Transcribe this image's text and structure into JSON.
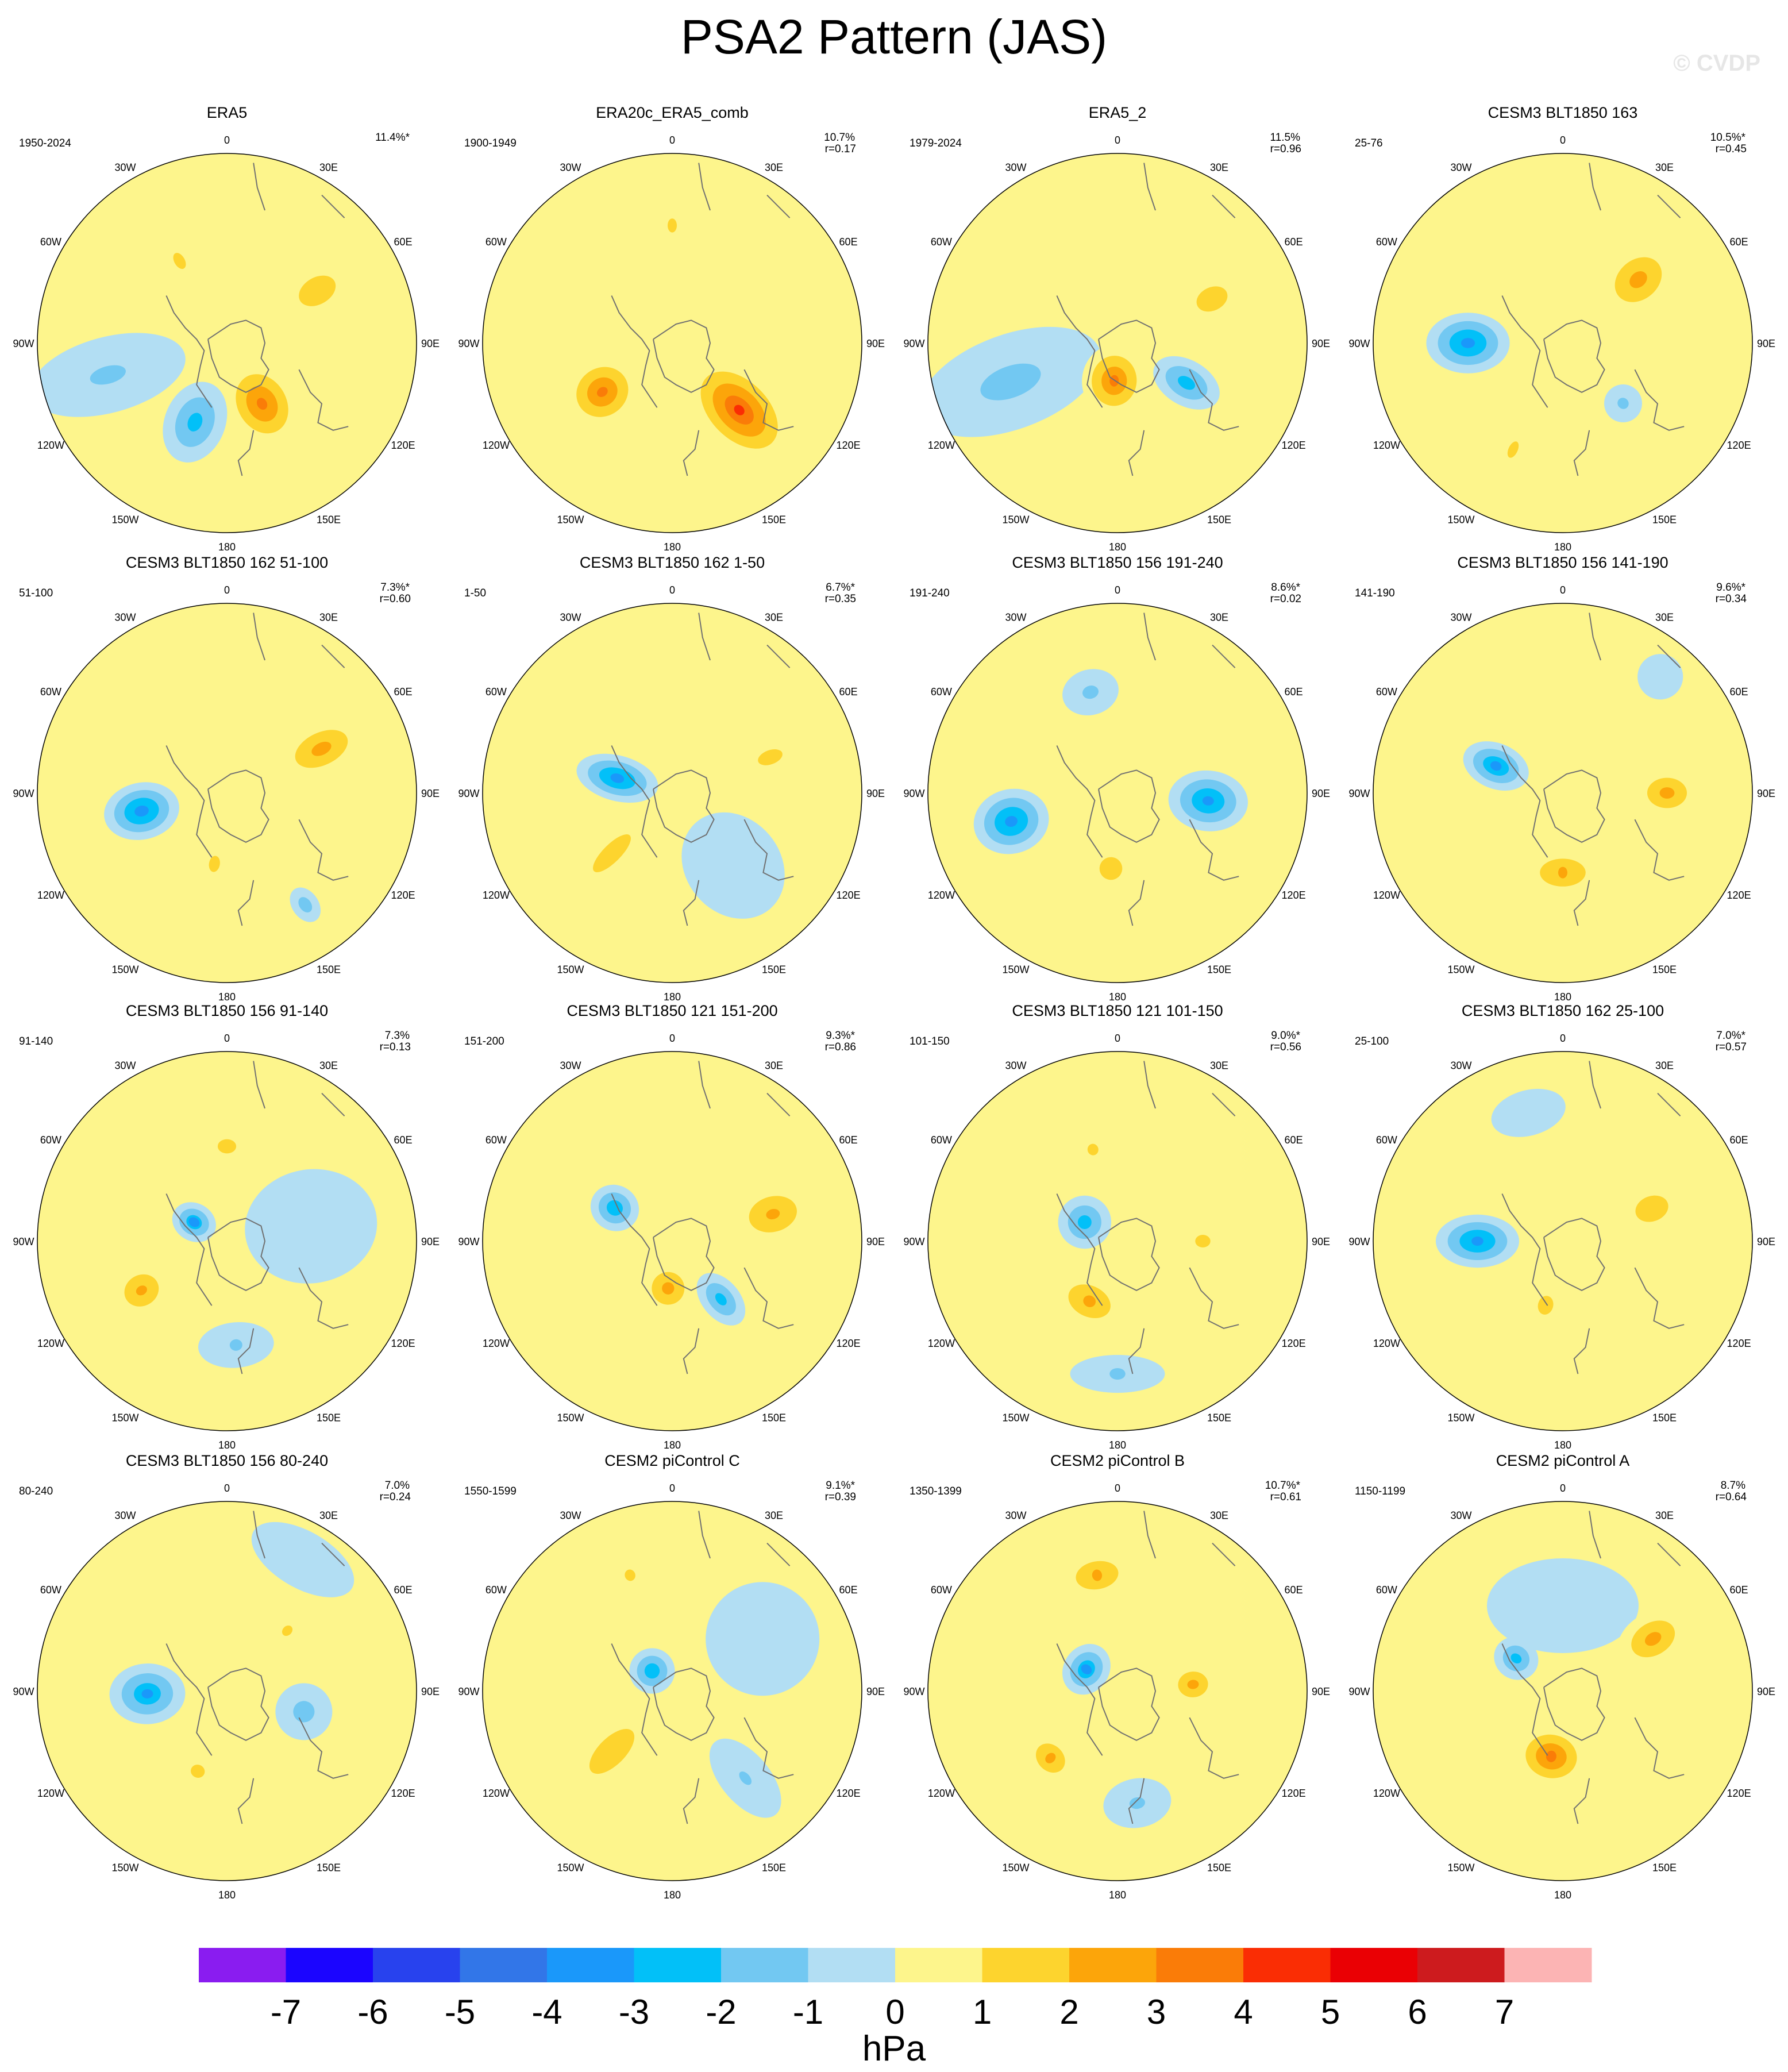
{
  "title": "PSA2 Pattern (JAS)",
  "watermark": "© CVDP",
  "units": "hPa",
  "chart_data": {
    "type": "heatmap",
    "projection": "south-polar-stereographic",
    "longitude_labels": [
      "0",
      "30E",
      "60E",
      "90E",
      "120E",
      "150E",
      "180",
      "150W",
      "120W",
      "90W",
      "60W",
      "30W"
    ],
    "colorbar": {
      "labels": [
        "-7",
        "-6",
        "-5",
        "-4",
        "-3",
        "-2",
        "-1",
        "0",
        "1",
        "2",
        "3",
        "4",
        "5",
        "6",
        "7"
      ],
      "colors": [
        "#8a1cf0",
        "#1b05ff",
        "#2842ee",
        "#3276e8",
        "#1a98fa",
        "#02c0f8",
        "#72c8f2",
        "#b2def3",
        "#fdf58c",
        "#fdd42e",
        "#fca50a",
        "#fa7c08",
        "#fa2d04",
        "#ea0004",
        "#cd1b1e",
        "#fcb4b4"
      ]
    },
    "panels": [
      {
        "title": "ERA5",
        "years": "1950-2024",
        "pct": "11.4%*",
        "r": "",
        "blobs": [
          {
            "lon": 150,
            "d": 0.37,
            "v": 3.5,
            "rx": 0.18,
            "ry": 0.23
          },
          {
            "lon": 202,
            "d": 0.45,
            "v": -2.6,
            "rx": 0.16,
            "ry": 0.22
          },
          {
            "lon": 255,
            "d": 0.65,
            "v": -1.3,
            "rx": 0.2,
            "ry": 0.42
          },
          {
            "lon": 60,
            "d": 0.55,
            "v": 1.9,
            "rx": 0.15,
            "ry": 0.22
          },
          {
            "lon": 330,
            "d": 0.5,
            "v": 1.3,
            "rx": 0.12,
            "ry": 0.2
          }
        ]
      },
      {
        "title": "ERA20c_ERA5_comb",
        "years": "1900-1949",
        "pct": "10.7%",
        "r": "r=0.17",
        "blobs": [
          {
            "lon": 135,
            "d": 0.5,
            "v": 4.2,
            "rx": 0.2,
            "ry": 0.32
          },
          {
            "lon": 235,
            "d": 0.45,
            "v": 3.4,
            "rx": 0.18,
            "ry": 0.2
          },
          {
            "lon": 0,
            "d": 0.62,
            "v": 1.3,
            "rx": 0.1,
            "ry": 0.16
          },
          {
            "lon": 180,
            "d": 0.55,
            "v": 0.6,
            "rx": 0.4,
            "ry": 0.45
          }
        ]
      },
      {
        "title": "ERA5_2",
        "years": "1979-2024",
        "pct": "11.5%",
        "r": "r=0.96",
        "blobs": [
          {
            "lon": 185,
            "d": 0.2,
            "v": 3.3,
            "rx": 0.17,
            "ry": 0.19
          },
          {
            "lon": 120,
            "d": 0.42,
            "v": -2.7,
            "rx": 0.12,
            "ry": 0.19
          },
          {
            "lon": 250,
            "d": 0.6,
            "v": -1.5,
            "rx": 0.25,
            "ry": 0.5
          },
          {
            "lon": 65,
            "d": 0.55,
            "v": 1.9,
            "rx": 0.13,
            "ry": 0.18
          }
        ]
      },
      {
        "title": "CESM3 BLT1850 163",
        "years": "25-76",
        "pct": "10.5%*",
        "r": "r=0.45",
        "blobs": [
          {
            "lon": 270,
            "d": 0.5,
            "v": -3.6,
            "rx": 0.16,
            "ry": 0.22
          },
          {
            "lon": 50,
            "d": 0.52,
            "v": 2.6,
            "rx": 0.17,
            "ry": 0.22
          },
          {
            "lon": 135,
            "d": 0.45,
            "v": -1.4,
            "rx": 0.1,
            "ry": 0.1
          },
          {
            "lon": 205,
            "d": 0.62,
            "v": 1.3,
            "rx": 0.1,
            "ry": 0.2
          },
          {
            "lon": 10,
            "d": 0.3,
            "v": 0.8,
            "rx": 0.35,
            "ry": 0.25
          }
        ]
      },
      {
        "title": "CESM3 BLT1850 162 51-100",
        "years": "51-100",
        "pct": "7.3%*",
        "r": "r=0.60",
        "blobs": [
          {
            "lon": 258,
            "d": 0.46,
            "v": -3.7,
            "rx": 0.15,
            "ry": 0.2
          },
          {
            "lon": 65,
            "d": 0.55,
            "v": 2.6,
            "rx": 0.14,
            "ry": 0.24
          },
          {
            "lon": 190,
            "d": 0.38,
            "v": 1.4,
            "rx": 0.1,
            "ry": 0.15
          },
          {
            "lon": 145,
            "d": 0.72,
            "v": -1.8,
            "rx": 0.07,
            "ry": 0.1
          }
        ]
      },
      {
        "title": "CESM3 BLT1850 162 1-50",
        "years": "1-50",
        "pct": "6.7%*",
        "r": "r=0.35",
        "blobs": [
          {
            "lon": 285,
            "d": 0.3,
            "v": -3.6,
            "rx": 0.12,
            "ry": 0.22
          },
          {
            "lon": 225,
            "d": 0.45,
            "v": 1.5,
            "rx": 0.14,
            "ry": 0.4
          },
          {
            "lon": 70,
            "d": 0.55,
            "v": 1.6,
            "rx": 0.1,
            "ry": 0.18
          },
          {
            "lon": 140,
            "d": 0.5,
            "v": -0.7,
            "rx": 0.25,
            "ry": 0.3
          }
        ]
      },
      {
        "title": "CESM3 BLT1850 156 191-240",
        "years": "191-240",
        "pct": "8.6%*",
        "r": "r=0.02",
        "blobs": [
          {
            "lon": 255,
            "d": 0.58,
            "v": -3.6,
            "rx": 0.17,
            "ry": 0.2
          },
          {
            "lon": 95,
            "d": 0.48,
            "v": -3.4,
            "rx": 0.16,
            "ry": 0.21
          },
          {
            "lon": 345,
            "d": 0.55,
            "v": -1.4,
            "rx": 0.15,
            "ry": 0.12
          },
          {
            "lon": 185,
            "d": 0.4,
            "v": 1.6,
            "rx": 0.16,
            "ry": 0.16
          }
        ]
      },
      {
        "title": "CESM3 BLT1850 156 141-190",
        "years": "141-190",
        "pct": "9.6%*",
        "r": "r=0.34",
        "blobs": [
          {
            "lon": 292,
            "d": 0.38,
            "v": -3.3,
            "rx": 0.12,
            "ry": 0.18
          },
          {
            "lon": 90,
            "d": 0.55,
            "v": 2.6,
            "rx": 0.13,
            "ry": 0.17
          },
          {
            "lon": 180,
            "d": 0.42,
            "v": 2.1,
            "rx": 0.23,
            "ry": 0.14
          },
          {
            "lon": 40,
            "d": 0.8,
            "v": -0.8,
            "rx": 0.12,
            "ry": 0.12
          }
        ]
      },
      {
        "title": "CESM3 BLT1850 156 91-140",
        "years": "91-140",
        "pct": "7.3%",
        "r": "r=0.13",
        "blobs": [
          {
            "lon": 300,
            "d": 0.2,
            "v": -3.1,
            "rx": 0.1,
            "ry": 0.12
          },
          {
            "lon": 240,
            "d": 0.52,
            "v": 2.4,
            "rx": 0.14,
            "ry": 0.16
          },
          {
            "lon": 0,
            "d": 0.5,
            "v": 1.6,
            "rx": 0.13,
            "ry": 0.1
          },
          {
            "lon": 175,
            "d": 0.55,
            "v": -1.2,
            "rx": 0.2,
            "ry": 0.12
          },
          {
            "lon": 80,
            "d": 0.45,
            "v": -0.7,
            "rx": 0.3,
            "ry": 0.35
          }
        ]
      },
      {
        "title": "CESM3 BLT1850 121 151-200",
        "years": "151-200",
        "pct": "9.3%*",
        "r": "r=0.86",
        "blobs": [
          {
            "lon": 185,
            "d": 0.25,
            "v": 2.6,
            "rx": 0.14,
            "ry": 0.14
          },
          {
            "lon": 75,
            "d": 0.55,
            "v": 2.4,
            "rx": 0.16,
            "ry": 0.22
          },
          {
            "lon": 300,
            "d": 0.35,
            "v": -3.0,
            "rx": 0.12,
            "ry": 0.13
          },
          {
            "lon": 140,
            "d": 0.4,
            "v": -2.6,
            "rx": 0.1,
            "ry": 0.16
          }
        ]
      },
      {
        "title": "CESM3 BLT1850 121 101-150",
        "years": "101-150",
        "pct": "9.0%*",
        "r": "r=0.56",
        "blobs": [
          {
            "lon": 300,
            "d": 0.2,
            "v": -2.7,
            "rx": 0.14,
            "ry": 0.14
          },
          {
            "lon": 205,
            "d": 0.35,
            "v": 2.4,
            "rx": 0.2,
            "ry": 0.14
          },
          {
            "lon": 90,
            "d": 0.45,
            "v": 1.5,
            "rx": 0.1,
            "ry": 0.12
          },
          {
            "lon": 180,
            "d": 0.7,
            "v": -1.2,
            "rx": 0.25,
            "ry": 0.1
          },
          {
            "lon": 345,
            "d": 0.5,
            "v": 1.4,
            "rx": 0.1,
            "ry": 0.1
          }
        ]
      },
      {
        "title": "CESM3 BLT1850 162 25-100",
        "years": "25-100",
        "pct": "7.0%*",
        "r": "r=0.57",
        "blobs": [
          {
            "lon": 270,
            "d": 0.45,
            "v": -3.5,
            "rx": 0.14,
            "ry": 0.22
          },
          {
            "lon": 70,
            "d": 0.5,
            "v": 1.8,
            "rx": 0.15,
            "ry": 0.2
          },
          {
            "lon": 195,
            "d": 0.35,
            "v": 1.5,
            "rx": 0.12,
            "ry": 0.15
          },
          {
            "lon": 345,
            "d": 0.7,
            "v": -0.7,
            "rx": 0.2,
            "ry": 0.12
          }
        ]
      },
      {
        "title": "CESM3 BLT1850 156 80-240",
        "years": "80-240",
        "pct": "7.0%",
        "r": "r=0.24",
        "blobs": [
          {
            "lon": 268,
            "d": 0.42,
            "v": -3.1,
            "rx": 0.16,
            "ry": 0.2
          },
          {
            "lon": 105,
            "d": 0.42,
            "v": -1.6,
            "rx": 0.15,
            "ry": 0.15
          },
          {
            "lon": 200,
            "d": 0.45,
            "v": 1.4,
            "rx": 0.13,
            "ry": 0.12
          },
          {
            "lon": 45,
            "d": 0.45,
            "v": 1.2,
            "rx": 0.05,
            "ry": 0.08
          },
          {
            "lon": 30,
            "d": 0.8,
            "v": -0.7,
            "rx": 0.3,
            "ry": 0.15
          }
        ]
      },
      {
        "title": "CESM2 piControl C",
        "years": "1550-1599",
        "pct": "9.1%*",
        "r": "r=0.39",
        "blobs": [
          {
            "lon": 315,
            "d": 0.15,
            "v": -3.0,
            "rx": 0.12,
            "ry": 0.12
          },
          {
            "lon": 225,
            "d": 0.45,
            "v": 1.9,
            "rx": 0.15,
            "ry": 0.32
          },
          {
            "lon": 340,
            "d": 0.65,
            "v": 1.3,
            "rx": 0.12,
            "ry": 0.12
          },
          {
            "lon": 140,
            "d": 0.6,
            "v": -1.2,
            "rx": 0.13,
            "ry": 0.25
          },
          {
            "lon": 60,
            "d": 0.55,
            "v": -0.7,
            "rx": 0.3,
            "ry": 0.3
          }
        ]
      },
      {
        "title": "CESM2 piControl B",
        "years": "1350-1399",
        "pct": "10.7%*",
        "r": "r=0.61",
        "blobs": [
          {
            "lon": 305,
            "d": 0.2,
            "v": -3.1,
            "rx": 0.14,
            "ry": 0.12
          },
          {
            "lon": 350,
            "d": 0.62,
            "v": 2.3,
            "rx": 0.2,
            "ry": 0.13
          },
          {
            "lon": 85,
            "d": 0.4,
            "v": 2.3,
            "rx": 0.12,
            "ry": 0.14
          },
          {
            "lon": 225,
            "d": 0.5,
            "v": 2.3,
            "rx": 0.15,
            "ry": 0.12
          },
          {
            "lon": 170,
            "d": 0.6,
            "v": -1.3,
            "rx": 0.18,
            "ry": 0.13
          }
        ]
      },
      {
        "title": "CESM2 piControl A",
        "years": "1150-1199",
        "pct": "8.7%",
        "r": "r=0.64",
        "blobs": [
          {
            "lon": 305,
            "d": 0.3,
            "v": -2.5,
            "rx": 0.11,
            "ry": 0.12
          },
          {
            "lon": 190,
            "d": 0.35,
            "v": 3.5,
            "rx": 0.19,
            "ry": 0.16
          },
          {
            "lon": 60,
            "d": 0.55,
            "v": 2.6,
            "rx": 0.14,
            "ry": 0.2
          },
          {
            "lon": 0,
            "d": 0.45,
            "v": -0.8,
            "rx": 0.4,
            "ry": 0.25
          }
        ]
      }
    ]
  }
}
